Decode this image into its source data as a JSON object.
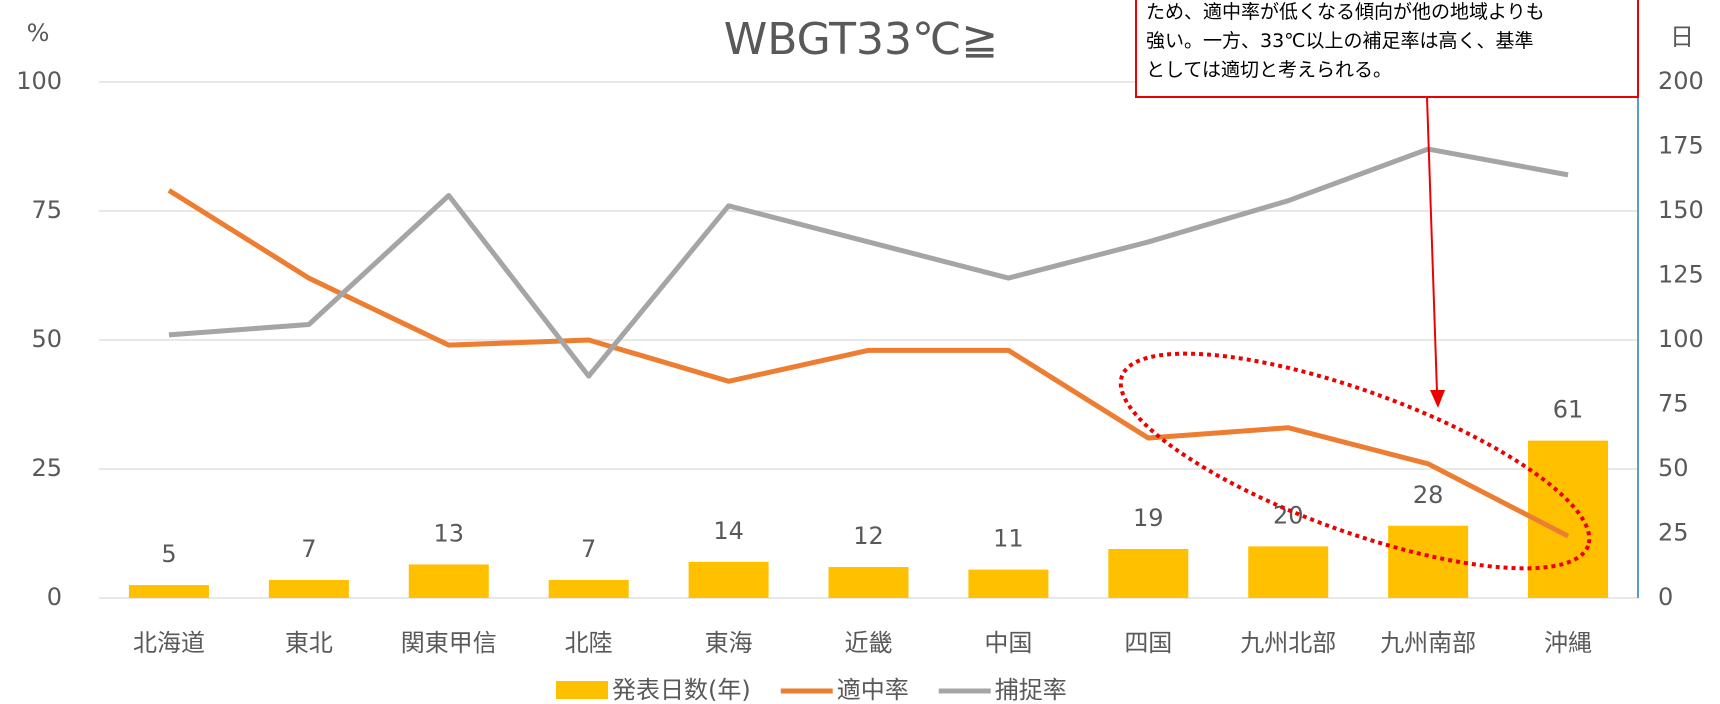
{
  "chart_data": {
    "type": "bar_line",
    "title": "WBGT33℃≧",
    "y_axis_label": "%",
    "y2_axis_label": "日",
    "categories": [
      "北海道",
      "東北",
      "関東甲信",
      "北陸",
      "東海",
      "近畿",
      "中国",
      "四国",
      "九州北部",
      "九州南部",
      "沖縄"
    ],
    "series": [
      {
        "name": "発表日数(年)",
        "type": "bar",
        "axis": "y2",
        "color": "#ffc000",
        "values": [
          5,
          7,
          13,
          7,
          14,
          12,
          11,
          19,
          20,
          28,
          61
        ]
      },
      {
        "name": "適中率",
        "type": "line",
        "color": "#ed7d31",
        "values": [
          79,
          62,
          49,
          50,
          42,
          48,
          48,
          31,
          33,
          26,
          12
        ]
      },
      {
        "name": "捕捉率",
        "type": "line",
        "color": "#a5a5a5",
        "values": [
          51,
          53,
          78,
          43,
          76,
          69,
          62,
          69,
          77,
          87,
          82
        ]
      }
    ],
    "ylim": [
      0,
      100
    ],
    "yticks": [
      0,
      25,
      50,
      75,
      100
    ],
    "y2lim": [
      0,
      200
    ],
    "y2ticks": [
      0,
      25,
      50,
      75,
      100,
      125,
      150,
      175,
      200
    ],
    "grid": true,
    "legend": "bottom",
    "annotation": [
      "ため、適中率が低くなる傾向が他の地域よりも",
      "強い。一方、33℃以上の補足率は高く、基準",
      "としては適切と考えられる。"
    ]
  }
}
